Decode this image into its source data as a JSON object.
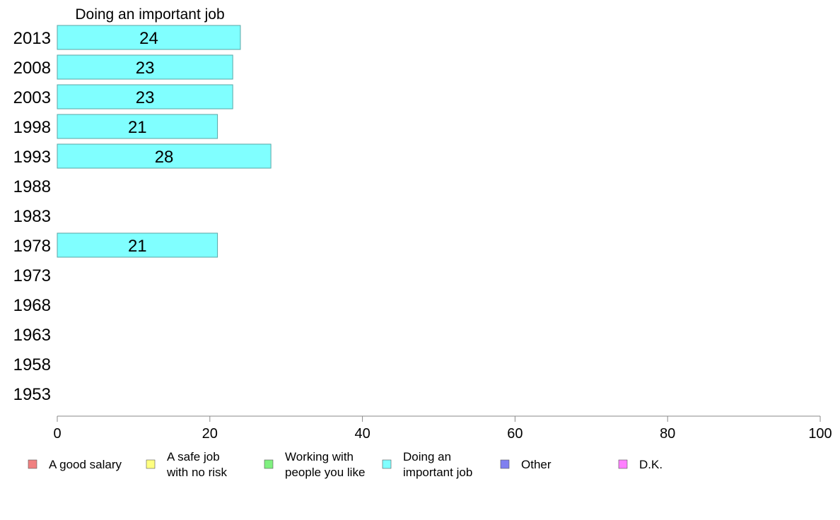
{
  "chart_data": {
    "type": "bar",
    "orientation": "horizontal",
    "title": "Doing an important job",
    "categories": [
      "2013",
      "2008",
      "2003",
      "1998",
      "1993",
      "1988",
      "1983",
      "1978",
      "1973",
      "1968",
      "1963",
      "1958",
      "1953"
    ],
    "series": [
      {
        "name": "Doing an important job",
        "values": [
          24,
          23,
          23,
          21,
          28,
          null,
          null,
          21,
          null,
          null,
          null,
          null,
          null
        ]
      }
    ],
    "data_labels": [
      "24",
      "23",
      "23",
      "21",
      "28",
      "",
      "",
      "21",
      "",
      "",
      "",
      "",
      ""
    ],
    "xlim": [
      0,
      100
    ],
    "xticks": [
      0,
      20,
      40,
      60,
      80,
      100
    ],
    "xtick_labels": [
      "0",
      "20",
      "40",
      "60",
      "80",
      "100"
    ],
    "grid": false,
    "bar_color": "#80ffff",
    "bar_stroke": "#5aa6a6",
    "legend": {
      "placement": "bottom",
      "entries": [
        {
          "lines": [
            "A good salary"
          ],
          "color": "#f08080"
        },
        {
          "lines": [
            "A safe job",
            "with no risk"
          ],
          "color": "#ffff80"
        },
        {
          "lines": [
            "Working with",
            "people you like"
          ],
          "color": "#80f080"
        },
        {
          "lines": [
            "Doing an",
            "important job"
          ],
          "color": "#80ffff"
        },
        {
          "lines": [
            "Other"
          ],
          "color": "#8080f0"
        },
        {
          "lines": [
            "D.K."
          ],
          "color": "#ff80ff"
        }
      ]
    }
  }
}
